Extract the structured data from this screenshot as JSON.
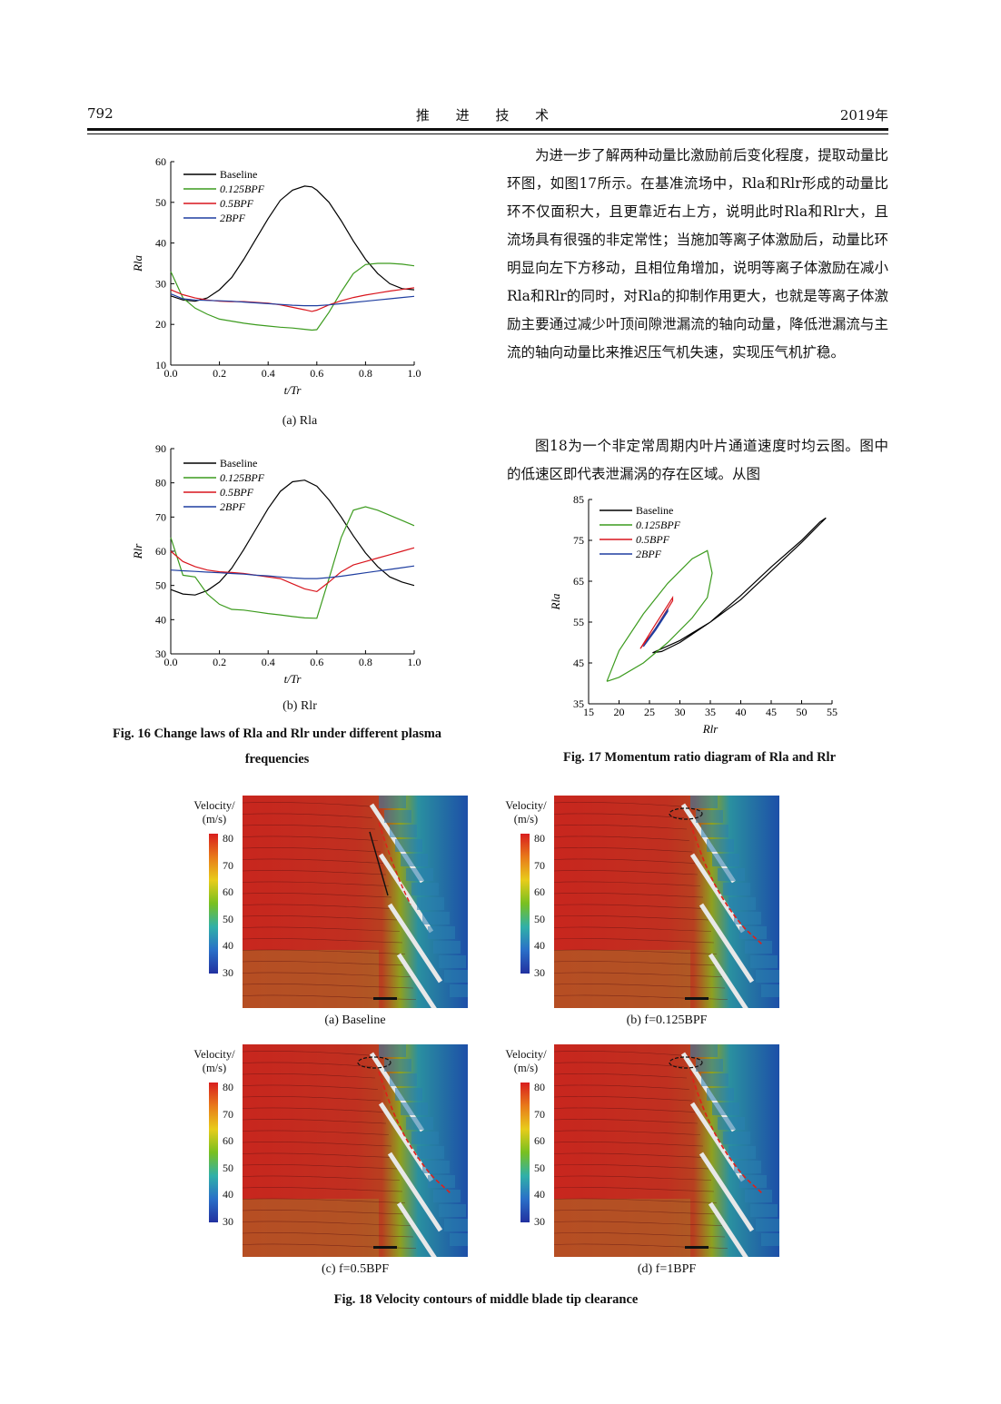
{
  "header": {
    "page_number": "792",
    "journal": "推 进 技 术",
    "year": "2019年"
  },
  "body_text": {
    "para1": "为进一步了解两种动量比激励前后变化程度，提取动量比环图，如图17所示。在基准流场中，Rla和Rlr形成的动量比环不仅面积大，且更靠近右上方，说明此时Rla和Rlr大，且流场具有很强的非定常性；当施加等离子体激励后，动量比环明显向左下方移动，且相位角增加，说明等离子体激励在减小Rla和Rlr的同时，对Rla的抑制作用更大，也就是等离子体激励主要通过减少叶顶间隙泄漏流的轴向动量，降低泄漏流与主流的轴向动量比来推迟压气机失速，实现压气机扩稳。",
    "para2": "图18为一个非定常周期内叶片通道速度时均云图。图中的低速区即代表泄漏涡的存在区域。从图"
  },
  "fig16": {
    "caption_line1": "Fig. 16    Change laws of Rla and Rlr under different plasma",
    "caption_line2": "frequencies",
    "sub_a": "(a) Rla",
    "sub_b": "(b) Rlr"
  },
  "fig17": {
    "caption": "Fig. 17    Momentum ratio diagram of Rla and Rlr"
  },
  "fig18": {
    "caption": "Fig. 18    Velocity contours of middle blade tip clearance",
    "panels": [
      {
        "label": "(a) Baseline"
      },
      {
        "label": "(b) f=0.125BPF"
      },
      {
        "label": "(c) f=0.5BPF"
      },
      {
        "label": "(d) f=1BPF"
      }
    ],
    "colorbar_title_line1": "Velocity/",
    "colorbar_title_line2": "(m/s)",
    "colorbar_ticks": [
      "80",
      "70",
      "60",
      "50",
      "40",
      "30"
    ]
  },
  "chart_data": [
    {
      "type": "line",
      "title": "",
      "xlabel": "t/Tr",
      "ylabel": "Rla",
      "xlim": [
        0,
        1
      ],
      "ylim": [
        10,
        60
      ],
      "xticks": [
        "0.0",
        "0.2",
        "0.4",
        "0.6",
        "0.8",
        "1.0"
      ],
      "yticks": [
        "60",
        "50",
        "40",
        "30",
        "20",
        "10"
      ],
      "x": [
        0.0,
        0.05,
        0.1,
        0.15,
        0.2,
        0.25,
        0.3,
        0.35,
        0.4,
        0.45,
        0.5,
        0.55,
        0.58,
        0.6,
        0.65,
        0.7,
        0.75,
        0.8,
        0.85,
        0.9,
        0.95,
        1.0
      ],
      "series": [
        {
          "name": "Baseline",
          "color": "#000000",
          "values": [
            27.0,
            26.0,
            25.7,
            26.5,
            28.5,
            31.5,
            36.0,
            41.0,
            46.0,
            50.5,
            53.0,
            54.0,
            53.8,
            53.0,
            50.0,
            45.5,
            40.5,
            36.0,
            32.5,
            30.0,
            28.8,
            28.5
          ]
        },
        {
          "name": "0.125BPF",
          "color": "#3c9b1e",
          "values": [
            33.0,
            26.5,
            24.0,
            22.5,
            21.3,
            20.8,
            20.3,
            19.9,
            19.6,
            19.3,
            19.1,
            18.8,
            18.6,
            18.7,
            23.0,
            28.0,
            32.5,
            34.7,
            35.0,
            35.0,
            34.8,
            34.4
          ]
        },
        {
          "name": "0.5BPF",
          "color": "#d9151d",
          "values": [
            28.5,
            27.3,
            26.5,
            26.0,
            25.7,
            25.6,
            25.6,
            25.4,
            25.2,
            24.8,
            24.2,
            23.6,
            23.2,
            23.5,
            24.8,
            25.8,
            26.6,
            27.2,
            27.7,
            28.2,
            28.6,
            29.0
          ]
        },
        {
          "name": "2BPF",
          "color": "#1f3ea0",
          "values": [
            27.5,
            26.3,
            26.0,
            25.9,
            25.8,
            25.7,
            25.5,
            25.3,
            25.1,
            24.9,
            24.7,
            24.6,
            24.6,
            24.6,
            24.8,
            25.1,
            25.4,
            25.7,
            26.0,
            26.3,
            26.6,
            26.9
          ]
        }
      ]
    },
    {
      "type": "line",
      "title": "",
      "xlabel": "t/Tr",
      "ylabel": "Rlr",
      "xlim": [
        0,
        1
      ],
      "ylim": [
        30,
        90
      ],
      "xticks": [
        "0.0",
        "0.2",
        "0.4",
        "0.6",
        "0.8",
        "1.0"
      ],
      "yticks": [
        "90",
        "80",
        "70",
        "60",
        "50",
        "40",
        "30"
      ],
      "x": [
        0.0,
        0.05,
        0.1,
        0.15,
        0.2,
        0.25,
        0.3,
        0.35,
        0.4,
        0.45,
        0.5,
        0.55,
        0.6,
        0.65,
        0.7,
        0.75,
        0.8,
        0.85,
        0.9,
        0.95,
        1.0
      ],
      "series": [
        {
          "name": "Baseline",
          "color": "#000000",
          "values": [
            48.8,
            47.5,
            47.2,
            48.5,
            51.0,
            55.0,
            60.5,
            66.5,
            72.5,
            77.5,
            80.3,
            80.8,
            79.0,
            75.0,
            70.0,
            64.5,
            59.5,
            55.5,
            52.5,
            51.0,
            50.0
          ]
        },
        {
          "name": "0.125BPF",
          "color": "#3c9b1e",
          "values": [
            64.0,
            53.0,
            52.5,
            47.5,
            44.5,
            43.0,
            42.8,
            42.3,
            41.8,
            41.4,
            40.9,
            40.5,
            40.4,
            52.0,
            64.0,
            72.0,
            73.0,
            72.0,
            70.5,
            69.0,
            67.5
          ]
        },
        {
          "name": "0.5BPF",
          "color": "#d9151d",
          "values": [
            60.0,
            57.0,
            55.5,
            54.5,
            54.0,
            53.8,
            53.5,
            53.0,
            52.5,
            52.0,
            50.5,
            49.0,
            48.2,
            51.0,
            54.0,
            56.0,
            57.0,
            58.0,
            59.0,
            60.0,
            61.0
          ]
        },
        {
          "name": "2BPF",
          "color": "#1f3ea0",
          "values": [
            54.5,
            54.3,
            54.1,
            53.9,
            53.7,
            53.5,
            53.3,
            53.0,
            52.8,
            52.5,
            52.2,
            52.0,
            52.0,
            52.3,
            52.7,
            53.2,
            53.7,
            54.2,
            54.7,
            55.2,
            55.7
          ]
        }
      ]
    },
    {
      "type": "line",
      "title": "",
      "xlabel": "Rlr",
      "ylabel": "Rla",
      "xlim": [
        15,
        55
      ],
      "ylim": [
        35,
        85
      ],
      "xticks": [
        "15",
        "20",
        "25",
        "30",
        "35",
        "40",
        "45",
        "50",
        "55"
      ],
      "yticks": [
        "85",
        "75",
        "65",
        "55",
        "45",
        "35"
      ],
      "series": [
        {
          "name": "Baseline",
          "color": "#000000",
          "x": [
            25.5,
            30,
            35,
            40,
            45,
            50,
            53,
            54,
            53,
            50,
            45,
            40,
            35,
            30,
            27,
            25.5
          ],
          "y": [
            47.5,
            50.5,
            55,
            60.5,
            67.5,
            74.5,
            79,
            80.5,
            79.5,
            75,
            68.5,
            61.5,
            55,
            50,
            47.8,
            47.5
          ]
        },
        {
          "name": "0.125BPF",
          "color": "#3c9b1e",
          "x": [
            18,
            20,
            24,
            28,
            32,
            34.5,
            35.3,
            34.5,
            32,
            28,
            24,
            20,
            18
          ],
          "y": [
            40.5,
            41.5,
            45,
            50,
            56,
            61,
            67,
            72.5,
            70.5,
            64.5,
            57,
            48,
            40.5
          ]
        },
        {
          "name": "0.5BPF",
          "color": "#d9151d",
          "x": [
            23.5,
            26,
            28.8,
            28.8,
            26,
            23.5
          ],
          "y": [
            48.5,
            54.5,
            61,
            60.2,
            53.5,
            48.5
          ]
        },
        {
          "name": "2BPF",
          "color": "#1f3ea0",
          "x": [
            24,
            26,
            28,
            28,
            26,
            24
          ],
          "y": [
            49,
            53.5,
            58,
            57.6,
            53,
            49
          ]
        }
      ]
    }
  ]
}
